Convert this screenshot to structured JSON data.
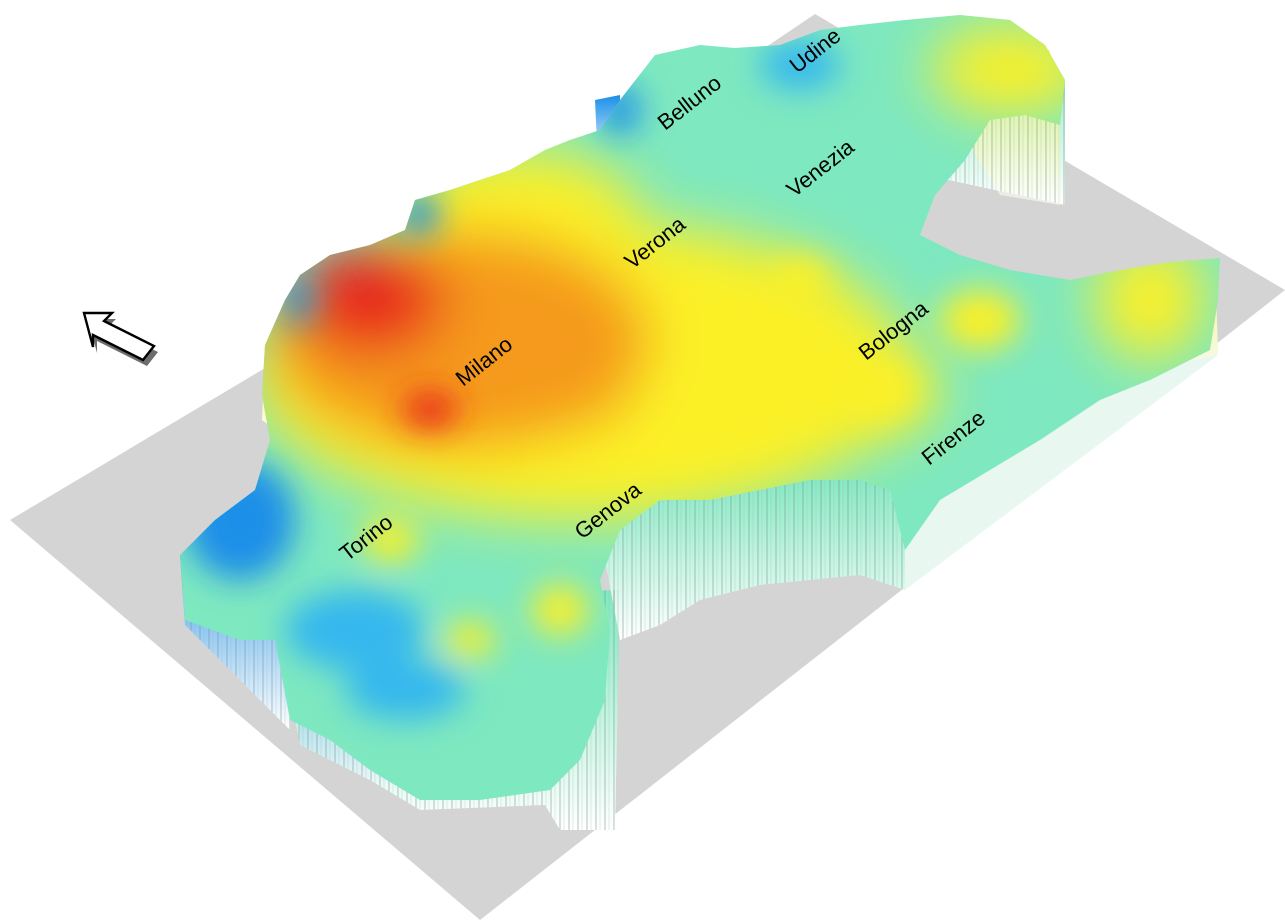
{
  "map": {
    "cities": [
      {
        "id": "udine",
        "name": "Udine"
      },
      {
        "id": "belluno",
        "name": "Belluno"
      },
      {
        "id": "venezia",
        "name": "Venezia"
      },
      {
        "id": "verona",
        "name": "Verona"
      },
      {
        "id": "milano",
        "name": "Milano"
      },
      {
        "id": "bologna",
        "name": "Bologna"
      },
      {
        "id": "firenze",
        "name": "Firenze"
      },
      {
        "id": "genova",
        "name": "Genova"
      },
      {
        "id": "torino",
        "name": "Torino"
      }
    ],
    "north_arrow_icon": "arrow-up-left-icon",
    "colors": {
      "base_plane": "#d4d4d4",
      "high": "#e8261c",
      "mid_high": "#f59a1f",
      "mid": "#fbf027",
      "low": "#7ee8c0",
      "lowest": "#1a8fe8"
    }
  }
}
